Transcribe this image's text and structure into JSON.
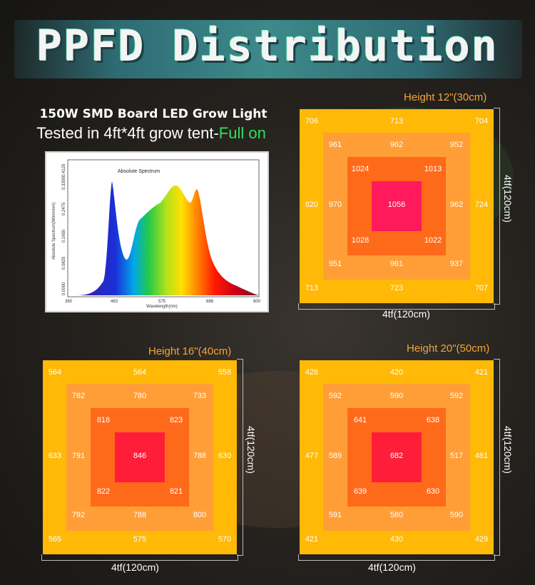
{
  "header": {
    "title": "PPFD Distribution"
  },
  "product": {
    "name": "150W SMD Board LED Grow Light",
    "tested_prefix": "Tested in 4ft*4ft grow tent-",
    "tested_highlight": "Full on"
  },
  "spectrum": {
    "title": "Absolute Spectrum",
    "xlabel": "Wavelength(nm)",
    "ylabel": "Absolute Spectrum(W/nm/nm)",
    "xticks": [
      "380",
      "463",
      "575",
      "688",
      "800"
    ],
    "yticks": [
      "0.0000",
      "0.0825",
      "0.1650",
      "0.2475",
      "0.3300",
      "0.4125"
    ]
  },
  "panels": [
    {
      "height_label": "Height 12\"(30cm)",
      "width_label": "4tf(120cm)",
      "side_label": "4tf(120cm)",
      "outer": {
        "tl": "706",
        "tc": "713",
        "tr": "704",
        "ml": "820",
        "mr": "724",
        "bl": "713",
        "bc": "723",
        "br": "707"
      },
      "ring1": {
        "tl": "961",
        "tc": "962",
        "tr": "952",
        "ml": "970",
        "mr": "962",
        "bl": "951",
        "bc": "961",
        "br": "937"
      },
      "ring2": {
        "tl": "1024",
        "tr": "1013",
        "bl": "1028",
        "br": "1022"
      },
      "center": "1056",
      "center_color": "#ff1a5c"
    },
    {
      "height_label": "Height 16\"(40cm)",
      "width_label": "4tf(120cm)",
      "side_label": "4tf(120cm)",
      "outer": {
        "tl": "564",
        "tc": "564",
        "tr": "558",
        "ml": "633",
        "mr": "630",
        "bl": "565",
        "bc": "575",
        "br": "570"
      },
      "ring1": {
        "tl": "782",
        "tc": "780",
        "tr": "733",
        "ml": "791",
        "mr": "788",
        "bl": "792",
        "bc": "788",
        "br": "800"
      },
      "ring2": {
        "tl": "818",
        "tr": "823",
        "bl": "822",
        "br": "821"
      },
      "center": "846",
      "center_color": "#ff1e3a"
    },
    {
      "height_label": "Height 20\"(50cm)",
      "width_label": "4tf(120cm)",
      "side_label": "4tf(120cm)",
      "outer": {
        "tl": "428",
        "tc": "420",
        "tr": "421",
        "ml": "477",
        "mr": "481",
        "bl": "421",
        "bc": "430",
        "br": "429"
      },
      "ring1": {
        "tl": "592",
        "tc": "590",
        "tr": "592",
        "ml": "589",
        "mr": "517",
        "bl": "591",
        "bc": "580",
        "br": "590"
      },
      "ring2": {
        "tl": "641",
        "tr": "638",
        "bl": "639",
        "br": "630"
      },
      "center": "682",
      "center_color": "#ff1e3a"
    }
  ]
}
